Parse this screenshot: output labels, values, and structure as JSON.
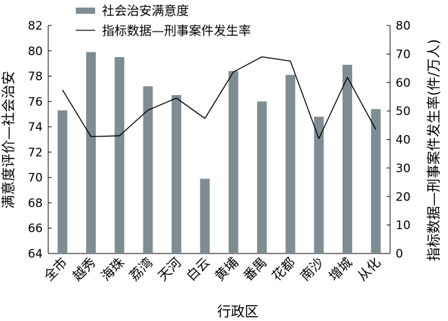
{
  "chart_data": {
    "type": "bar",
    "xlabel": "行政区",
    "ylabel_left": "满意度评价—社会治安",
    "ylabel_right": "指标数据—刑事案件发生率(件/万人)",
    "categories": [
      "全市",
      "越秀",
      "海珠",
      "荔湾",
      "天河",
      "白云",
      "黄埔",
      "番禺",
      "花都",
      "南沙",
      "增城",
      "从化"
    ],
    "left_axis": {
      "ylim": [
        64,
        82
      ],
      "ticks": [
        64,
        66,
        68,
        70,
        72,
        74,
        76,
        78,
        80,
        82
      ]
    },
    "right_axis": {
      "ylim": [
        0,
        80
      ],
      "ticks": [
        0,
        10,
        20,
        30,
        40,
        50,
        60,
        70,
        80
      ]
    },
    "series": [
      {
        "name": "社会治安满意度",
        "type": "bar",
        "axis": "left",
        "color": "#7f8c91",
        "values": [
          75.3,
          79.9,
          79.5,
          77.2,
          76.5,
          69.9,
          78.4,
          76.0,
          78.1,
          74.8,
          78.9,
          75.4
        ]
      },
      {
        "name": "指标数据—刑事案件发生率",
        "type": "line",
        "axis": "right",
        "color": "#000000",
        "values": [
          57.4,
          41.0,
          41.3,
          50.3,
          54.5,
          47.4,
          63.7,
          69.0,
          67.5,
          40.3,
          61.8,
          43.5
        ]
      }
    ],
    "grid": false,
    "legend": "top"
  }
}
